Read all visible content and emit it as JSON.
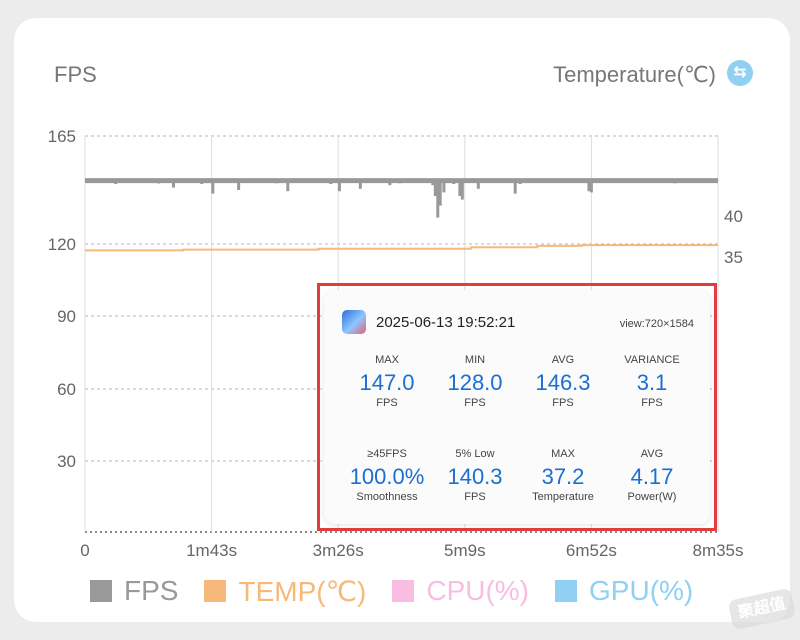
{
  "chart_data": {
    "type": "line",
    "ylabel_left": "FPS",
    "ylabel_right": "Temperature(℃)",
    "yticks_left": [
      "165",
      "120",
      "90",
      "60",
      "30"
    ],
    "ytick_values_left": [
      165,
      120,
      90,
      60,
      30
    ],
    "yticks_right": [
      "40",
      "35"
    ],
    "ytick_values_right": [
      40,
      35
    ],
    "xticks": [
      "0",
      "1m43s",
      "3m26s",
      "5m9s",
      "6m52s",
      "8m35s"
    ],
    "xtick_seconds": [
      0,
      103,
      206,
      309,
      412,
      515
    ],
    "grid": true,
    "series": [
      {
        "name": "FPS",
        "color": "#999999",
        "baseline": 146.4,
        "dips": [
          [
            4,
            145.5
          ],
          [
            25,
            145.0
          ],
          [
            30,
            145.6
          ],
          [
            35,
            145.8
          ],
          [
            60,
            145.2
          ],
          [
            72,
            143.5
          ],
          [
            85,
            145.5
          ],
          [
            95,
            145.0
          ],
          [
            104,
            141.0
          ],
          [
            125,
            142.5
          ],
          [
            156,
            145.3
          ],
          [
            165,
            142.0
          ],
          [
            185,
            145.5
          ],
          [
            200,
            145.0
          ],
          [
            207,
            142.0
          ],
          [
            215,
            145.5
          ],
          [
            224,
            143.0
          ],
          [
            248,
            144.5
          ],
          [
            256,
            145.3
          ],
          [
            283,
            144.5
          ],
          [
            285,
            140.0
          ],
          [
            287,
            131.0
          ],
          [
            289,
            136.0
          ],
          [
            292,
            141.5
          ],
          [
            300,
            145.0
          ],
          [
            305,
            140.0
          ],
          [
            307,
            138.5
          ],
          [
            316,
            145.5
          ],
          [
            320,
            143.0
          ],
          [
            338,
            146.0
          ],
          [
            350,
            141.0
          ],
          [
            354,
            145.0
          ],
          [
            375,
            146.0
          ],
          [
            395,
            145.8
          ],
          [
            410,
            142.0
          ],
          [
            412,
            141.5
          ],
          [
            425,
            145.5
          ],
          [
            445,
            146.0
          ],
          [
            470,
            145.8
          ],
          [
            480,
            145.3
          ],
          [
            500,
            145.7
          ],
          [
            510,
            145.9
          ]
        ]
      },
      {
        "name": "TEMP(℃)",
        "color": "#f7b97a",
        "x": [
          0,
          80,
          80,
          190,
          190,
          314,
          314,
          368,
          368,
          404,
          404,
          515
        ],
        "y": [
          35.8,
          35.8,
          35.9,
          35.9,
          36.0,
          36.0,
          36.2,
          36.2,
          36.35,
          36.35,
          36.45,
          36.45
        ]
      },
      {
        "name": "CPU(%)",
        "color": "#f8bde0"
      },
      {
        "name": "GPU(%)",
        "color": "#8fd0f3"
      }
    ]
  },
  "summary": {
    "timestamp": "2025-06-13 19:52:21",
    "view": "view:720×1584",
    "metrics": [
      {
        "top": "MAX",
        "value": "147.0",
        "unit": "FPS"
      },
      {
        "top": "MIN",
        "value": "128.0",
        "unit": "FPS"
      },
      {
        "top": "AVG",
        "value": "146.3",
        "unit": "FPS"
      },
      {
        "top": "VARIANCE",
        "value": "3.1",
        "unit": "FPS"
      },
      {
        "top": "≥45FPS",
        "value": "100.0%",
        "unit": "Smoothness"
      },
      {
        "top": "5% Low",
        "value": "140.3",
        "unit": "FPS"
      },
      {
        "top": "MAX",
        "value": "37.2",
        "unit": "Temperature"
      },
      {
        "top": "AVG",
        "value": "4.17",
        "unit": "Power(W)"
      }
    ]
  },
  "icons": {
    "swap": "swap-arrows-icon",
    "app": "game-app-icon"
  },
  "swap_glyph": "⇆",
  "watermark": "聚超值"
}
